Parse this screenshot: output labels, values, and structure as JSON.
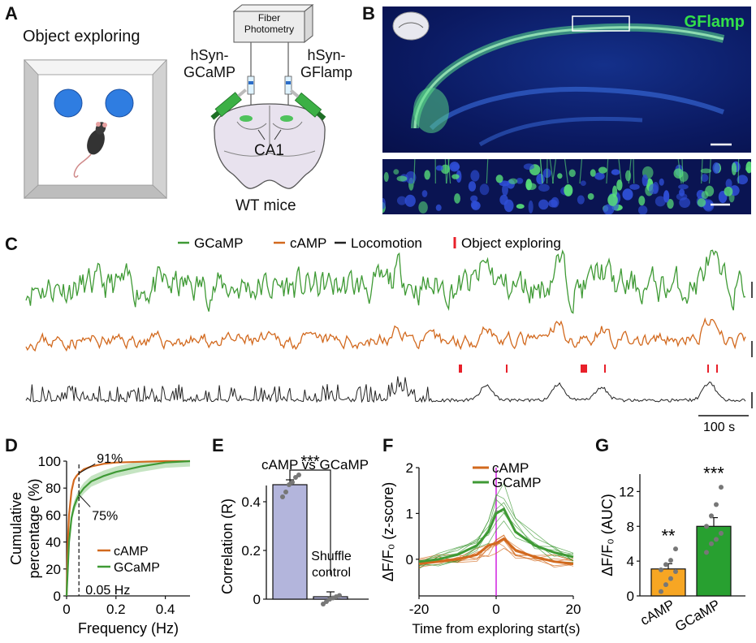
{
  "panels": {
    "A": {
      "letter": "A",
      "object_label": "Object exploring",
      "fiber_line1": "Fiber",
      "fiber_line2": "Photometry",
      "left_virus_1": "hSyn-",
      "left_virus_2": "GCaMP",
      "right_virus_1": "hSyn-",
      "right_virus_2": "GFlamp",
      "region": "CA1",
      "mice": "WT mice"
    },
    "B": {
      "letter": "B",
      "sensor_label": "GFlamp"
    },
    "C": {
      "letter": "C",
      "legend": [
        "GCaMP",
        "cAMP",
        "Locomotion",
        "Object exploring"
      ],
      "scale_label": "100 s"
    },
    "D": {
      "letter": "D"
    },
    "E": {
      "letter": "E"
    },
    "F": {
      "letter": "F"
    },
    "G": {
      "letter": "G"
    }
  },
  "colors": {
    "gcamp": "#3f9a35",
    "camp": "#d2691e",
    "locomotion": "#222222",
    "exploring": "#e8202a",
    "g_camp_bar": "#f7a623",
    "g_gcamp_bar": "#28a030",
    "e_bar": "#b3b5dc"
  },
  "chart_data": [
    {
      "panel": "D",
      "type": "line",
      "xlabel": "Frequency (Hz)",
      "ylabel_line1": "Cumulative",
      "ylabel_line2": "percentage (%)",
      "xlim": [
        0,
        0.5
      ],
      "ylim": [
        0,
        100
      ],
      "xticks": [
        "0",
        "0.2",
        "0.4"
      ],
      "yticks": [
        "0",
        "20",
        "40",
        "60",
        "80",
        "100"
      ],
      "annotations": [
        "91%",
        "75%",
        "0.05 Hz"
      ],
      "series": [
        {
          "name": "cAMP",
          "x": [
            0,
            0.005,
            0.01,
            0.02,
            0.03,
            0.04,
            0.05,
            0.07,
            0.1,
            0.15,
            0.2,
            0.3,
            0.4,
            0.5
          ],
          "y": [
            0,
            40,
            60,
            78,
            86,
            89,
            91,
            94,
            96,
            98,
            99,
            99.5,
            100,
            100
          ]
        },
        {
          "name": "GCaMP",
          "x": [
            0,
            0.005,
            0.01,
            0.02,
            0.03,
            0.04,
            0.05,
            0.07,
            0.1,
            0.15,
            0.2,
            0.3,
            0.4,
            0.5
          ],
          "y": [
            0,
            20,
            40,
            58,
            66,
            71,
            75,
            80,
            85,
            89,
            92,
            96,
            99,
            100
          ]
        }
      ]
    },
    {
      "panel": "E",
      "type": "bar",
      "title": "cAMP vs GCaMP",
      "ylabel": "Correlation (R)",
      "ylim": [
        0,
        0.5
      ],
      "yticks": [
        "0",
        "0.2",
        "0.4"
      ],
      "significance": "***",
      "categories": [
        "",
        "Shuffle control"
      ],
      "category_label_1": "Shuffle",
      "category_label_2": "control",
      "values": [
        0.47,
        0.01
      ],
      "points": [
        [
          0.42,
          0.44,
          0.47,
          0.48,
          0.5,
          0.51
        ],
        [
          -0.02,
          -0.01,
          0.0,
          0.005,
          0.01,
          0.015
        ]
      ]
    },
    {
      "panel": "F",
      "type": "line",
      "xlabel": "Time from exploring start(s)",
      "ylabel": "ΔF/F₀ (z-score)",
      "xlim": [
        -20,
        20
      ],
      "ylim": [
        -0.8,
        2
      ],
      "xticks": [
        "-20",
        "0",
        "20"
      ],
      "yticks": [
        "0",
        "1",
        "2"
      ],
      "series": [
        {
          "name": "cAMP",
          "x": [
            -20,
            -15,
            -10,
            -5,
            -2,
            0,
            2,
            5,
            10,
            15,
            20
          ],
          "y": [
            -0.1,
            -0.05,
            0,
            0.1,
            0.3,
            0.35,
            0.45,
            0.2,
            0.05,
            -0.05,
            -0.1
          ]
        },
        {
          "name": "GCaMP",
          "x": [
            -20,
            -15,
            -10,
            -5,
            -2,
            0,
            2,
            5,
            10,
            15,
            20
          ],
          "y": [
            -0.05,
            0,
            0.1,
            0.3,
            0.6,
            1.0,
            1.1,
            0.6,
            0.3,
            0.15,
            0.05
          ]
        }
      ]
    },
    {
      "panel": "G",
      "type": "bar",
      "ylabel": "ΔF/F₀ (AUC)",
      "ylim": [
        0,
        14
      ],
      "yticks": [
        "0",
        "4",
        "8",
        "12"
      ],
      "categories": [
        "cAMP",
        "GCaMP"
      ],
      "values": [
        3.1,
        8.0
      ],
      "significance": [
        "**",
        "***"
      ],
      "points": [
        [
          0.5,
          1.3,
          2.0,
          2.8,
          3.0,
          3.6,
          4.1,
          5.4
        ],
        [
          5.0,
          6.0,
          6.5,
          7.2,
          8.0,
          9.2,
          10.5,
          12.5
        ]
      ]
    }
  ]
}
